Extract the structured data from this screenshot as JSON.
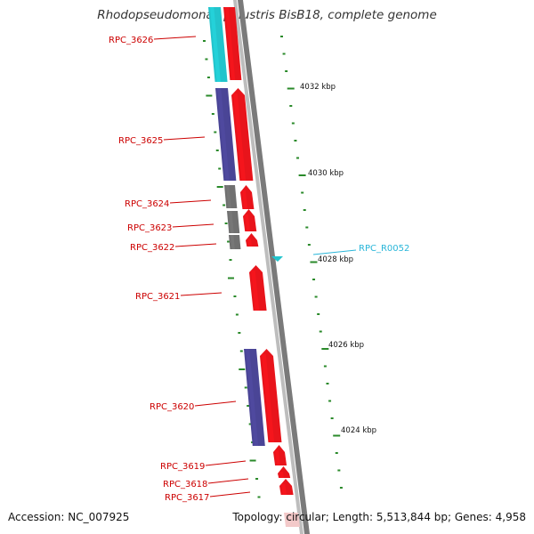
{
  "title": "Rhodopseudomonas palustris BisB18, complete genome",
  "footer": {
    "accession": "Accession: NC_007925",
    "topology": "Topology: circular; Length: 5,513,844 bp; Genes: 4,958"
  },
  "colors": {
    "forward_gene": "#e8141b",
    "reverse_gene": "#4a4596",
    "cyan_gene": "#22c4cc",
    "gray_gene": "#707070",
    "tick": "#2a8a2a",
    "backbone": "#7a7a7a",
    "label_red": "#cc0000",
    "label_cyan": "#29b6d9"
  },
  "scale_labels": [
    "4032 kbp",
    "4030 kbp",
    "4028 kbp",
    "4026 kbp",
    "4024 kbp"
  ],
  "genes": [
    {
      "name": "RPC_3626",
      "color": "cyan"
    },
    {
      "name": "RPC_3625",
      "color": "reverse"
    },
    {
      "name": "RPC_3624",
      "color": "gray"
    },
    {
      "name": "RPC_3623",
      "color": "gray"
    },
    {
      "name": "RPC_3622",
      "color": "gray"
    },
    {
      "name": "RPC_3621",
      "color": "forward"
    },
    {
      "name": "RPC_3620",
      "color": "reverse"
    },
    {
      "name": "RPC_3619",
      "color": "forward"
    },
    {
      "name": "RPC_3618",
      "color": "forward"
    },
    {
      "name": "RPC_3617",
      "color": "forward"
    }
  ],
  "rna_features": [
    {
      "name": "RPC_R0052"
    }
  ]
}
